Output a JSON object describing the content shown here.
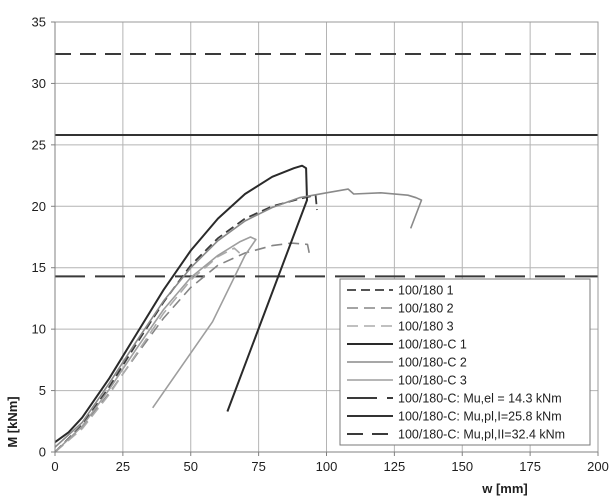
{
  "chart_data": {
    "type": "line",
    "xlabel": "w [mm]",
    "ylabel": "M [kNm]",
    "xlim": [
      0,
      200
    ],
    "ylim": [
      0,
      35
    ],
    "x_ticks": [
      "0",
      "25",
      "50",
      "75",
      "100",
      "125",
      "150",
      "175",
      "200"
    ],
    "y_ticks": [
      "0",
      "5",
      "10",
      "15",
      "20",
      "25",
      "30",
      "35"
    ],
    "grid": true,
    "legend": "bottom-right",
    "series": [
      {
        "name": "100/180 1",
        "color": "#3c3c3c",
        "points": [
          [
            0,
            0
          ],
          [
            10,
            2.2
          ],
          [
            20,
            5.3
          ],
          [
            30,
            8.8
          ],
          [
            40,
            12.2
          ],
          [
            50,
            15.2
          ],
          [
            60,
            17.4
          ],
          [
            70,
            19.0
          ],
          [
            80,
            20.0
          ],
          [
            90,
            20.6
          ],
          [
            96,
            20.9
          ],
          [
            96.5,
            19.7
          ]
        ]
      },
      {
        "name": "100/180 2",
        "color": "#858585",
        "points": [
          [
            0,
            0
          ],
          [
            10,
            2.0
          ],
          [
            20,
            4.8
          ],
          [
            30,
            7.9
          ],
          [
            40,
            10.9
          ],
          [
            50,
            13.4
          ],
          [
            60,
            15.2
          ],
          [
            70,
            16.2
          ],
          [
            80,
            16.8
          ],
          [
            87,
            17.0
          ],
          [
            93,
            16.9
          ],
          [
            94,
            15.8
          ]
        ]
      },
      {
        "name": "100/180 3",
        "color": "#ababab",
        "points": [
          [
            0,
            0
          ],
          [
            10,
            1.9
          ],
          [
            20,
            4.7
          ],
          [
            30,
            8.0
          ],
          [
            40,
            11.3
          ],
          [
            50,
            14.0
          ],
          [
            60,
            15.9
          ],
          [
            66,
            16.6
          ],
          [
            68,
            16.2
          ]
        ]
      },
      {
        "name": "100/180-C 1",
        "color": "#2a2a2a",
        "points": [
          [
            0,
            0.8
          ],
          [
            5,
            1.6
          ],
          [
            10,
            2.8
          ],
          [
            20,
            6.0
          ],
          [
            30,
            9.6
          ],
          [
            40,
            13.2
          ],
          [
            50,
            16.4
          ],
          [
            60,
            19.0
          ],
          [
            70,
            21.0
          ],
          [
            80,
            22.4
          ],
          [
            88,
            23.1
          ],
          [
            91,
            23.3
          ],
          [
            92.5,
            23.1
          ],
          [
            92.8,
            20.5
          ],
          [
            63.5,
            3.3
          ]
        ]
      },
      {
        "name": "100/180-C 2",
        "color": "#8a8a8a",
        "points": [
          [
            0,
            0.4
          ],
          [
            10,
            2.4
          ],
          [
            20,
            5.6
          ],
          [
            30,
            9.0
          ],
          [
            40,
            12.3
          ],
          [
            50,
            15.0
          ],
          [
            60,
            17.2
          ],
          [
            70,
            18.8
          ],
          [
            80,
            19.9
          ],
          [
            90,
            20.7
          ],
          [
            100,
            21.1
          ],
          [
            108,
            21.4
          ],
          [
            110,
            21.0
          ],
          [
            120,
            21.1
          ],
          [
            130,
            20.9
          ],
          [
            133,
            20.7
          ],
          [
            135,
            20.5
          ],
          [
            131,
            18.2
          ]
        ]
      },
      {
        "name": "100/180-C 3",
        "color": "#9e9e9e",
        "points": [
          [
            0,
            0
          ],
          [
            10,
            2.1
          ],
          [
            20,
            5.1
          ],
          [
            30,
            8.4
          ],
          [
            40,
            11.6
          ],
          [
            50,
            14.2
          ],
          [
            60,
            16.0
          ],
          [
            68,
            17.1
          ],
          [
            72,
            17.5
          ],
          [
            74,
            17.3
          ],
          [
            70,
            16.0
          ],
          [
            58,
            10.6
          ],
          [
            36,
            3.6
          ]
        ]
      }
    ],
    "reference_lines": [
      {
        "name": "100/180-C: Mu,el = 14.3 kNm",
        "value": 14.3,
        "color": "#3a3a3a"
      },
      {
        "name": "100/180-C: Mu,pl,I=25.8 kNm",
        "value": 25.8,
        "color": "#333333"
      },
      {
        "name": "100/180-C: Mu,pl,II=32.4 kNm",
        "value": 32.4,
        "color": "#3a3a3a"
      }
    ]
  }
}
